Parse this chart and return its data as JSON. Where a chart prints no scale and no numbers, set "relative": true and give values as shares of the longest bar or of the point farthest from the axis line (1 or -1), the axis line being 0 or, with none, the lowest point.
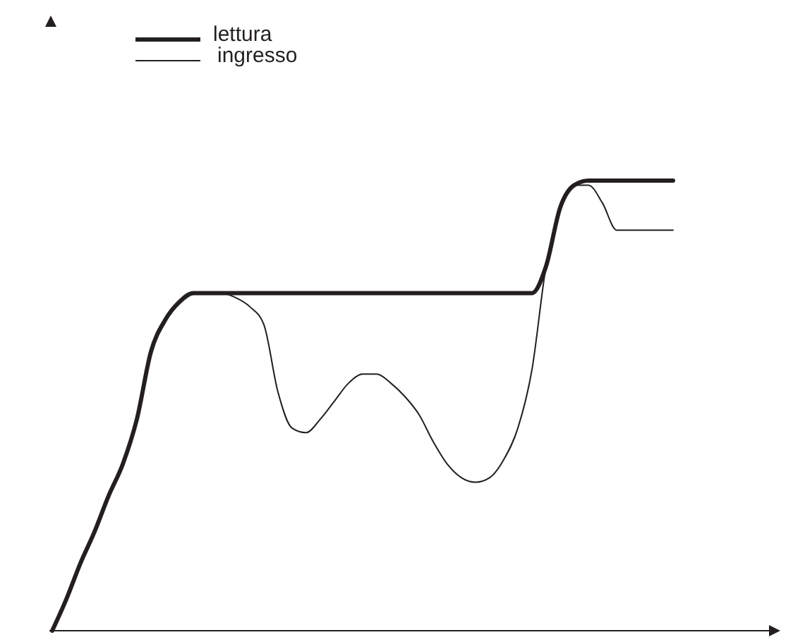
{
  "chart_data": {
    "type": "line",
    "relative": true,
    "legend": "top left",
    "marker": "none",
    "categories": [
      null,
      null,
      null,
      null,
      null,
      null,
      null,
      null,
      null,
      null,
      null,
      null,
      null,
      null,
      null,
      null,
      null,
      null,
      null,
      null,
      null,
      null,
      null,
      null,
      null,
      null,
      null,
      null,
      null,
      null,
      null,
      null,
      null,
      null,
      null,
      null,
      null,
      null,
      null,
      null,
      null,
      null,
      null,
      null,
      null
    ],
    "series": [
      {
        "name": "lettura",
        "color": "#231f20",
        "line_style": "solid",
        "values": [
          0,
          0.07,
          0.15,
          0.22,
          0.3,
          0.37,
          0.47,
          0.62,
          0.69,
          0.73,
          0.75,
          0.75,
          0.75,
          0.75,
          0.75,
          0.75,
          0.75,
          0.75,
          0.75,
          0.75,
          0.75,
          0.75,
          0.75,
          0.75,
          0.75,
          0.75,
          0.75,
          0.75,
          0.75,
          0.75,
          0.75,
          0.75,
          0.75,
          0.75,
          0.75,
          0.81,
          0.94,
          0.99,
          1,
          1,
          1,
          1,
          1,
          1,
          1
        ]
      },
      {
        "name": "ingresso",
        "color": "#231f20",
        "line_style": "solid",
        "values": [
          0,
          0.07,
          0.15,
          0.22,
          0.3,
          0.37,
          0.47,
          0.62,
          0.69,
          0.73,
          0.75,
          0.75,
          0.75,
          0.74,
          0.72,
          0.68,
          0.53,
          0.45,
          0.44,
          0.47,
          0.51,
          0.55,
          0.57,
          0.57,
          0.55,
          0.52,
          0.48,
          0.42,
          0.37,
          0.34,
          0.33,
          0.34,
          0.38,
          0.45,
          0.58,
          0.81,
          0.94,
          0.99,
          0.99,
          0.95,
          0.89,
          0.89,
          0.89,
          0.89,
          0.89
        ]
      }
    ]
  }
}
